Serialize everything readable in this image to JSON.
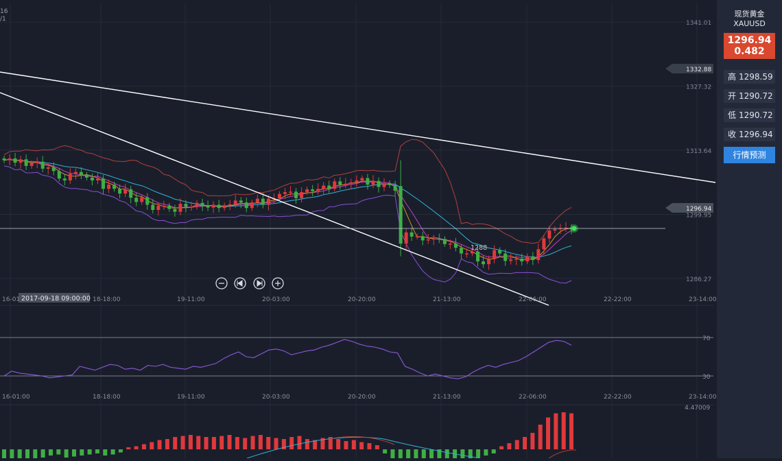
{
  "sidebar": {
    "title_cn": "现货黄金",
    "symbol": "XAUUSD",
    "price": "1296.94",
    "change": "0.482",
    "stats": [
      {
        "label": "高",
        "value": "1298.59"
      },
      {
        "label": "开",
        "value": "1290.72"
      },
      {
        "label": "低",
        "value": "1290.72"
      },
      {
        "label": "收",
        "value": "1296.94"
      }
    ],
    "forecast_button": "行情预测"
  },
  "topleft": {
    "line1": "16",
    "line2": "/1"
  },
  "cursor_time": "2017-09-18 09:00:00",
  "low_marker": "1288",
  "price_tags": {
    "trend_value": "1332.88",
    "current": "1296.94"
  },
  "macd_top_label": "4.47009",
  "colors": {
    "background": "#1a1e2b",
    "up": "#e0393c",
    "down": "#3fae45",
    "bollinger": "#b2413a",
    "ma_cyan": "#2fb4d9",
    "ma_purple": "#8a4fd8",
    "ma_orange": "#d7902c",
    "ma_magenta": "#c23fc9",
    "rsi": "#8a5ad8",
    "trendline": "#ffffff"
  },
  "chart_data": [
    {
      "type": "candlestick",
      "id": "price",
      "y_ticks": [
        "1341.01",
        "1327.32",
        "1313.64",
        "1299.95",
        "1286.27"
      ],
      "x_ticks": [
        "16-01:00",
        "18-18:00",
        "19-11:00",
        "20-03:00",
        "20-20:00",
        "21-13:00",
        "22-06:00",
        "22-22:00",
        "23-14:00"
      ],
      "ylim": [
        1282,
        1345
      ],
      "closes": [
        1311.5,
        1311.9,
        1311.0,
        1311.7,
        1310.3,
        1310.9,
        1311.2,
        1309.7,
        1310.0,
        1309.2,
        1307.6,
        1307.2,
        1308.6,
        1309.0,
        1308.4,
        1307.8,
        1307.2,
        1307.6,
        1305.4,
        1306.3,
        1305.4,
        1304.4,
        1305.3,
        1303.5,
        1302.6,
        1303.6,
        1302.0,
        1300.9,
        1301.8,
        1301.8,
        1301.1,
        1300.5,
        1302.2,
        1301.6,
        1301.6,
        1302.4,
        1301.7,
        1301.4,
        1302.0,
        1301.3,
        1301.9,
        1302.1,
        1302.9,
        1302.5,
        1301.3,
        1302.5,
        1303.3,
        1302.0,
        1303.3,
        1303.4,
        1304.3,
        1304.7,
        1304.8,
        1303.4,
        1304.7,
        1305.3,
        1304.9,
        1305.4,
        1306.1,
        1305.4,
        1307.0,
        1306.3,
        1306.5,
        1306.8,
        1307.2,
        1307.7,
        1306.3,
        1307.1,
        1305.8,
        1306.6,
        1306.2,
        1305.0,
        1293.7,
        1296.1,
        1295.2,
        1295.3,
        1294.4,
        1294.6,
        1294.8,
        1294.7,
        1293.6,
        1293.7,
        1292.8,
        1291.6,
        1291.6,
        1292.0,
        1289.9,
        1289.3,
        1290.4,
        1292.3,
        1291.6,
        1290.0,
        1290.3,
        1290.5,
        1289.9,
        1291.0,
        1290.2,
        1292.5,
        1294.8,
        1296.5,
        1296.8,
        1297.0,
        1297.1,
        1296.9
      ],
      "low_label_value": 1288,
      "current_price": 1296.94,
      "right_tag_value": 1332.88,
      "indicators": [
        "Bollinger",
        "MA cyan",
        "MA purple",
        "MA orange",
        "MA magenta"
      ]
    },
    {
      "type": "line",
      "id": "rsi",
      "x_ticks": [
        "16-01:00",
        "18-18:00",
        "19-11:00",
        "20-03:00",
        "20-20:00",
        "21-13:00",
        "22-06:00",
        "22-22:00",
        "23-14:00"
      ],
      "levels": [
        70,
        30
      ],
      "level_labels": [
        "70",
        "30"
      ],
      "ylim": [
        0,
        100
      ],
      "values": [
        30,
        35,
        33,
        32,
        31,
        30,
        28,
        29,
        30,
        31,
        40,
        38,
        36,
        39,
        42,
        41,
        37,
        38,
        36,
        41,
        40,
        42,
        39,
        38,
        37,
        40,
        39,
        41,
        43,
        48,
        52,
        55,
        50,
        49,
        53,
        57,
        58,
        56,
        52,
        54,
        56,
        57,
        60,
        62,
        65,
        68,
        66,
        63,
        61,
        60,
        58,
        55,
        54,
        40,
        37,
        33,
        30,
        32,
        30,
        28,
        27,
        29,
        34,
        38,
        41,
        39,
        42,
        44,
        46,
        50,
        55,
        60,
        65,
        67,
        66,
        62
      ],
      "color": "#8a5ad8"
    },
    {
      "type": "bar",
      "id": "macd",
      "top_label": "4.47009",
      "values": [
        -1.5,
        -1.3,
        -1.2,
        -1.4,
        -1.0,
        -0.8,
        -0.6,
        -0.5,
        -0.8,
        -0.7,
        -0.6,
        -0.5,
        -0.4,
        -0.6,
        -0.5,
        -0.3,
        0.2,
        0.3,
        0.5,
        0.7,
        0.9,
        1.0,
        1.2,
        1.3,
        1.4,
        1.3,
        1.2,
        1.2,
        1.3,
        1.4,
        1.2,
        1.1,
        1.3,
        1.4,
        1.2,
        1.1,
        1.0,
        1.2,
        1.3,
        1.0,
        0.9,
        1.1,
        1.2,
        1.0,
        0.8,
        0.9,
        0.7,
        0.6,
        0.4,
        -0.4,
        -1.5,
        -1.8,
        -1.6,
        -1.5,
        -1.7,
        -1.6,
        -1.4,
        -1.5,
        -1.3,
        -1.2,
        -1.0,
        -0.8,
        -0.6,
        -0.4,
        0.3,
        0.6,
        0.9,
        1.2,
        1.6,
        2.4,
        3.1,
        3.5,
        3.6,
        3.5
      ],
      "up_color": "#e0393c",
      "down_color": "#3fae45"
    }
  ]
}
